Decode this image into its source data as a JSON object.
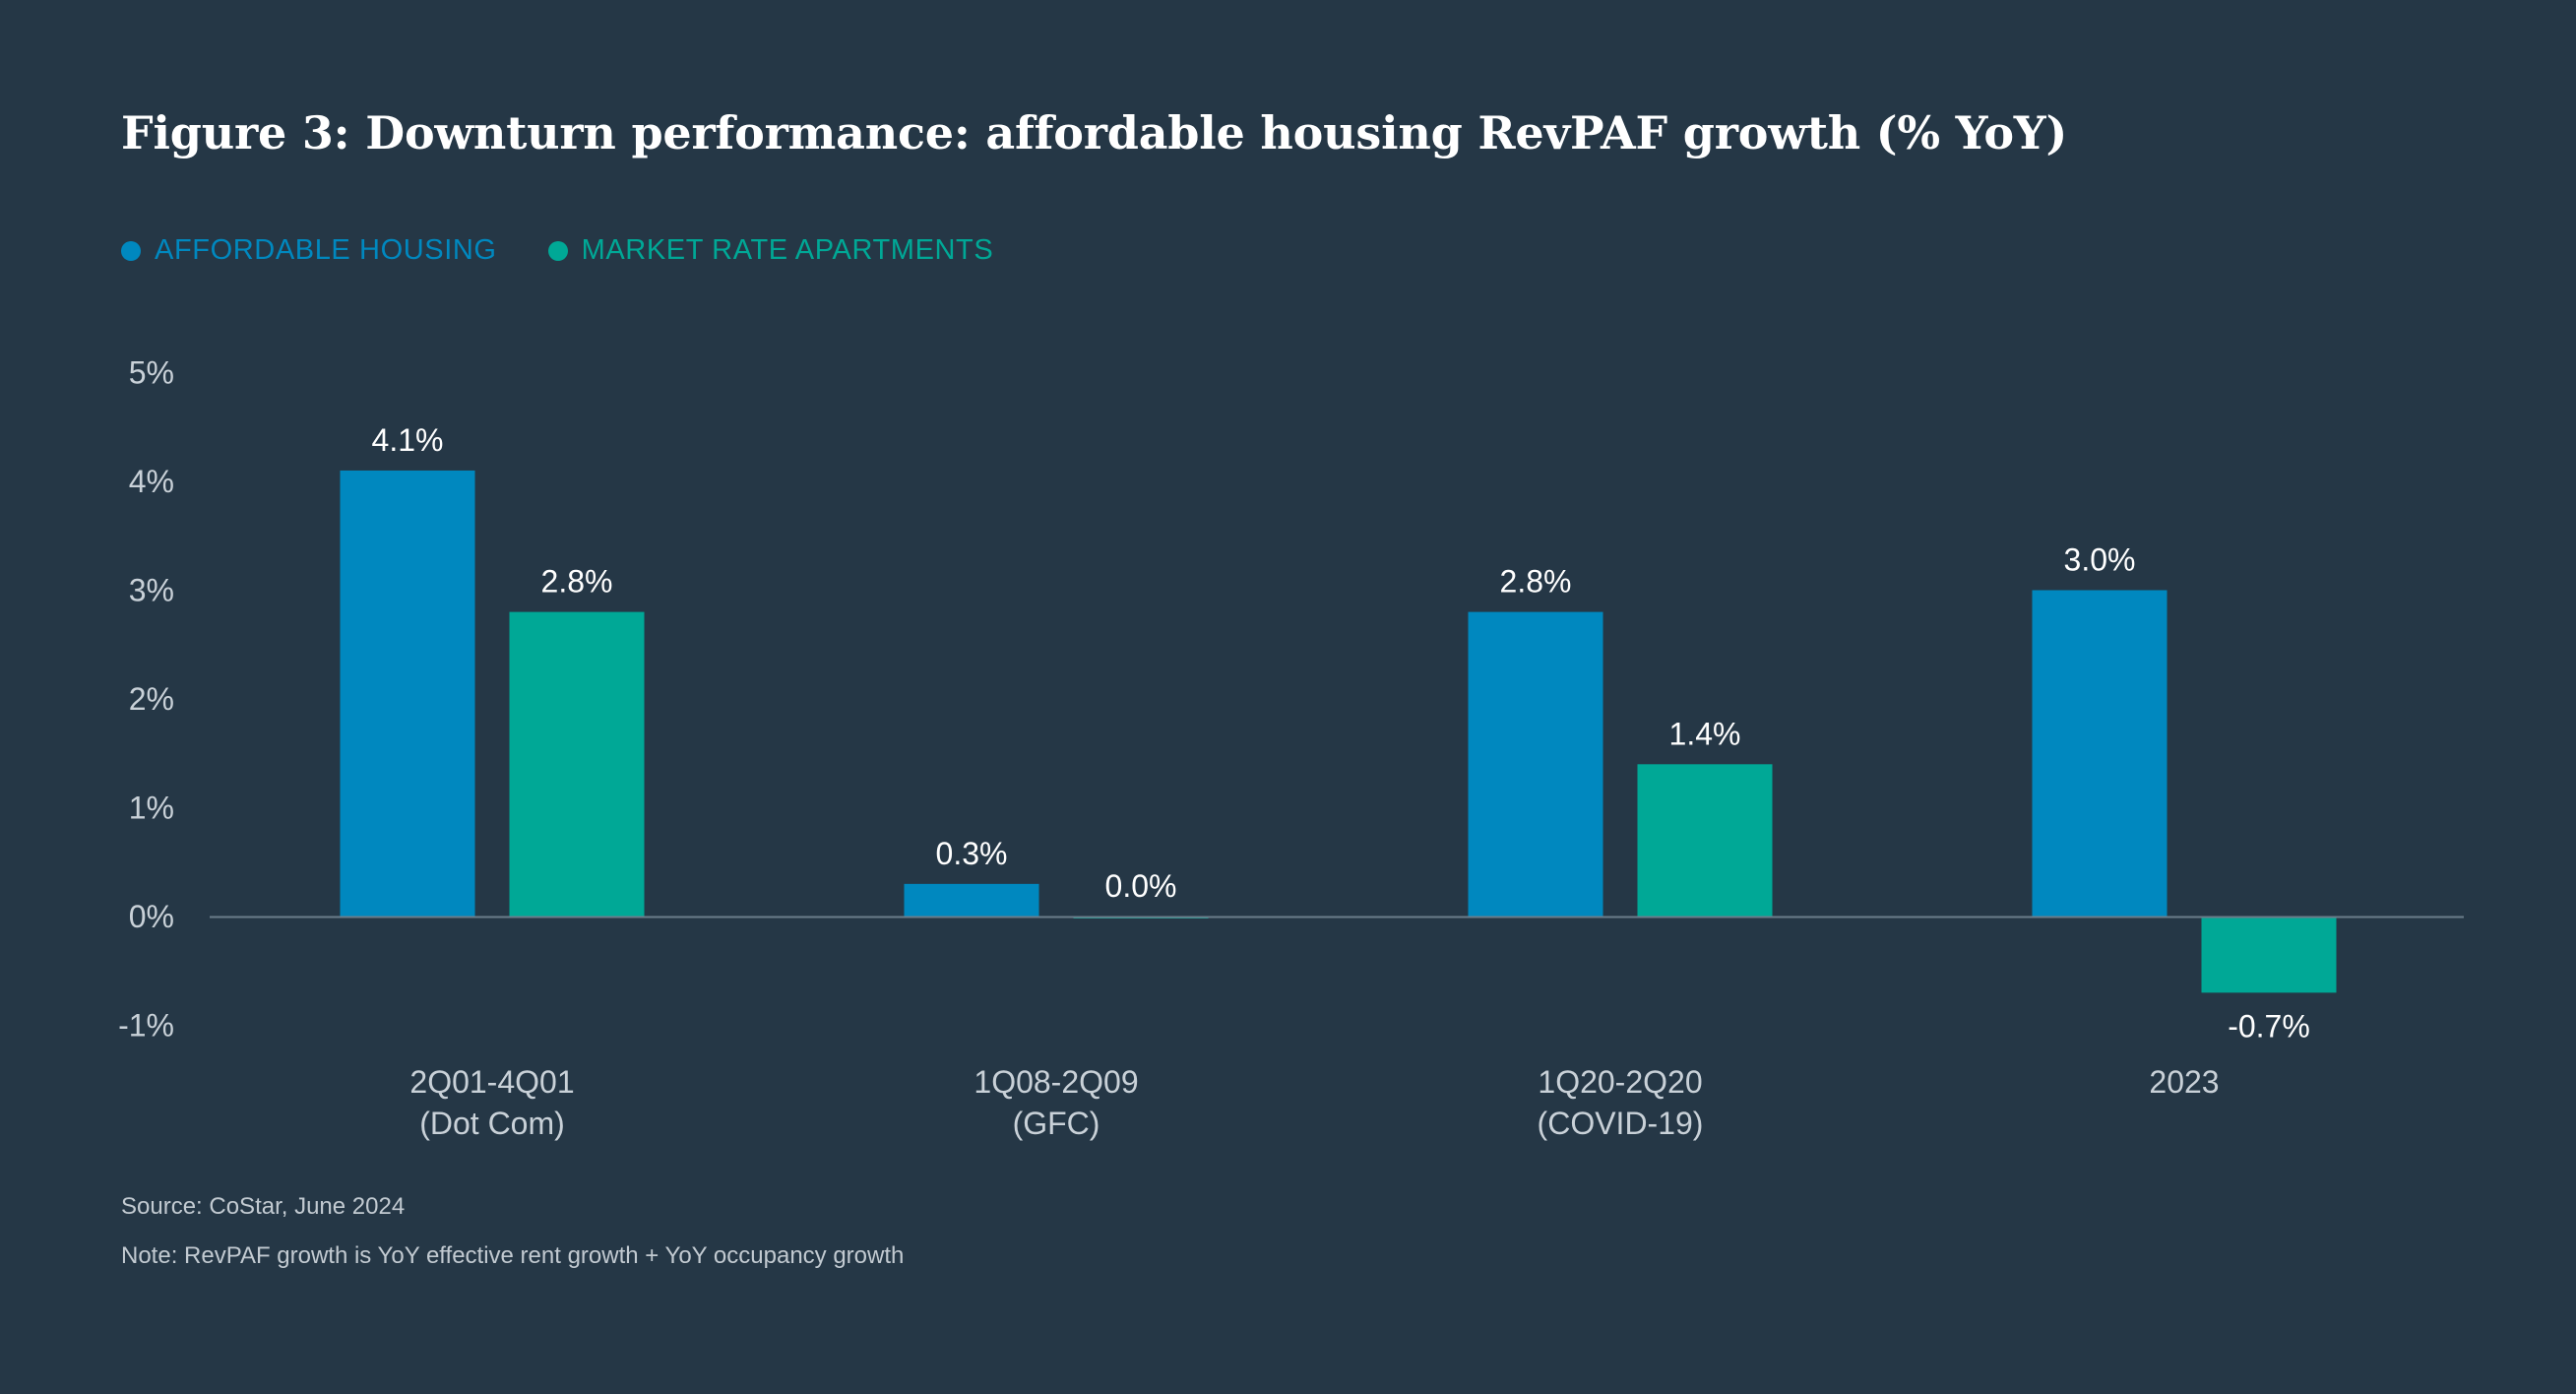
{
  "title": "Figure 3: Downturn performance: affordable housing RevPAF growth (% YoY)",
  "colors": {
    "background": "#253746",
    "affordable": "#0088BF",
    "market": "#00A896",
    "axis_text": "#c9d1d8",
    "baseline": "#6b7d8b"
  },
  "chart_data": {
    "type": "bar",
    "categories": [
      [
        "2Q01-4Q01",
        "(Dot Com)"
      ],
      [
        "1Q08-2Q09",
        "(GFC)"
      ],
      [
        "1Q20-2Q20",
        "(COVID-19)"
      ],
      [
        "2023"
      ]
    ],
    "series": [
      {
        "name": "AFFORDABLE HOUSING",
        "values": [
          4.1,
          0.3,
          2.8,
          3.0
        ],
        "labels": [
          "4.1%",
          "0.3%",
          "2.8%",
          "3.0%"
        ]
      },
      {
        "name": "MARKET RATE APARTMENTS",
        "values": [
          2.8,
          0.0,
          1.4,
          -0.7
        ],
        "labels": [
          "2.8%",
          "0.0%",
          "1.4%",
          "-0.7%"
        ]
      }
    ],
    "yticks": [
      5,
      4,
      3,
      2,
      1,
      0,
      -1
    ],
    "ytick_labels": [
      "5%",
      "4%",
      "3%",
      "2%",
      "1%",
      "0%",
      "-1%"
    ],
    "ylim": [
      -1,
      5
    ],
    "grid": false,
    "legend_position": "top-left"
  },
  "footnotes": {
    "source": "Source: CoStar, June 2024",
    "note": "Note: RevPAF growth is YoY effective rent growth + YoY occupancy growth"
  }
}
